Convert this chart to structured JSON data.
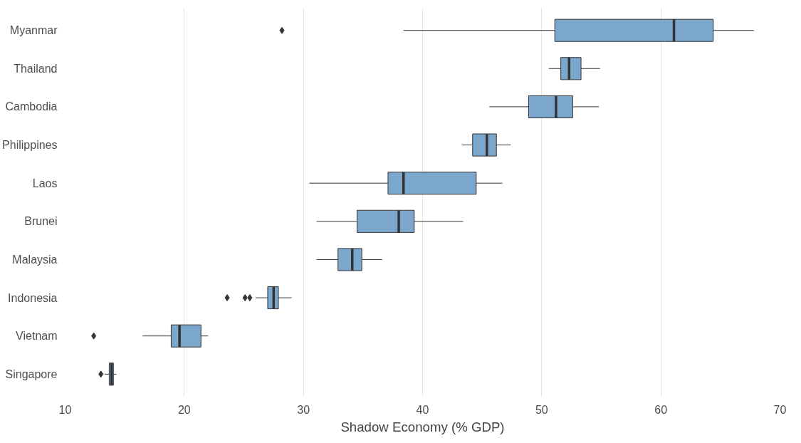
{
  "chart_data": {
    "type": "box",
    "orientation": "horizontal",
    "xlabel": "Shadow Economy (% GDP)",
    "categories": [
      "Myanmar",
      "Thailand",
      "Cambodia",
      "Philippines",
      "Laos",
      "Brunei",
      "Malaysia",
      "Indonesia",
      "Vietnam",
      "Singapore"
    ],
    "color": "#7ba7cc",
    "marker": "diamond",
    "grid": "x",
    "xlim": [
      10,
      70
    ],
    "xticks": [
      10,
      20,
      30,
      40,
      50,
      60,
      70
    ],
    "boxes": [
      {
        "low": 38.4,
        "q1": 51.1,
        "median": 61.1,
        "q3": 64.4,
        "high": 67.8,
        "outliers": [
          28.2
        ]
      },
      {
        "low": 50.6,
        "q1": 51.6,
        "median": 52.3,
        "q3": 53.3,
        "high": 54.9
      },
      {
        "low": 45.6,
        "q1": 48.9,
        "median": 51.2,
        "q3": 52.6,
        "high": 54.8
      },
      {
        "low": 43.3,
        "q1": 44.2,
        "median": 45.4,
        "q3": 46.2,
        "high": 47.4
      },
      {
        "low": 30.5,
        "q1": 37.1,
        "median": 38.4,
        "q3": 44.5,
        "high": 46.7
      },
      {
        "low": 31.1,
        "q1": 34.5,
        "median": 38.0,
        "q3": 39.3,
        "high": 43.4
      },
      {
        "low": 31.1,
        "q1": 32.9,
        "median": 34.1,
        "q3": 34.9,
        "high": 36.6
      },
      {
        "low": 26.0,
        "q1": 27.0,
        "median": 27.5,
        "q3": 27.9,
        "high": 29.0,
        "outliers": [
          23.6,
          25.1,
          25.5
        ]
      },
      {
        "low": 16.5,
        "q1": 18.9,
        "median": 19.6,
        "q3": 21.4,
        "high": 22.0,
        "outliers": [
          12.4
        ]
      },
      {
        "low": 13.3,
        "q1": 13.7,
        "median": 13.9,
        "q3": 14.05,
        "high": 14.3,
        "outliers": [
          13.0
        ]
      }
    ]
  }
}
